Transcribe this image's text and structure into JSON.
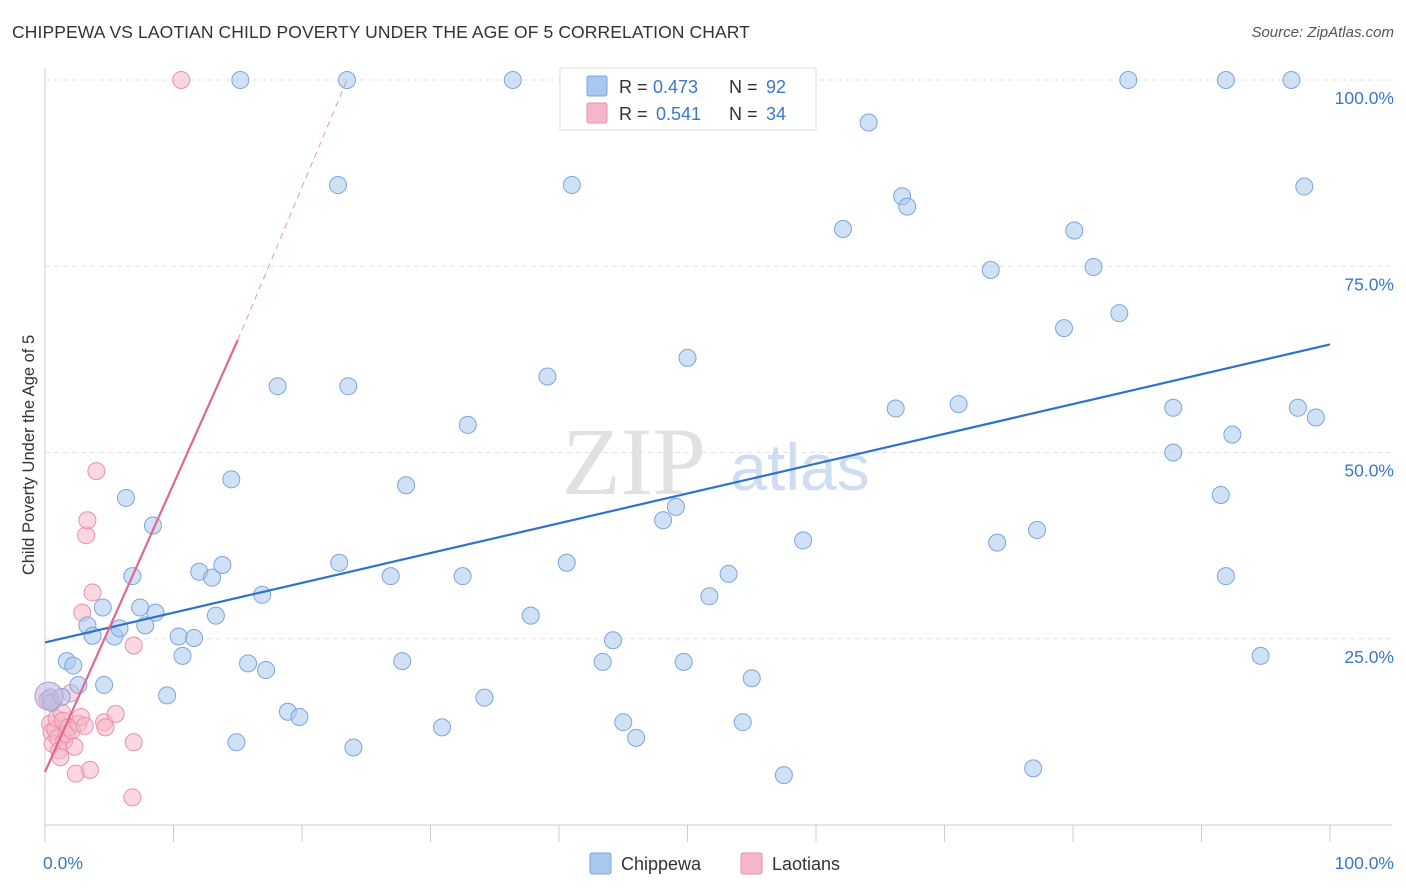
{
  "title": "CHIPPEWA VS LAOTIAN CHILD POVERTY UNDER THE AGE OF 5 CORRELATION CHART",
  "source": "Source: ZipAtlas.com",
  "watermark": {
    "zip": "ZIP",
    "atlas": "atlas"
  },
  "legend_box": {
    "rows": [
      {
        "r_label": "R =",
        "r_value": "0.473",
        "n_label": "N =",
        "n_value": "92"
      },
      {
        "r_label": "R =",
        "r_value": "0.541",
        "n_label": "N =",
        "n_value": "34"
      }
    ]
  },
  "colors": {
    "chippewa_fill": "#a9c8ef",
    "chippewa_stroke": "#7aa6de",
    "chippewa_line": "#2f73c8",
    "laotians_fill": "#f5b6c9",
    "laotians_stroke": "#ec8fac",
    "laotians_line": "#e2668e",
    "value_text": "#3a78c9",
    "grid": "#e3e3e3"
  },
  "chart_data": {
    "type": "scatter",
    "title": "CHIPPEWA VS LAOTIAN CHILD POVERTY UNDER THE AGE OF 5 CORRELATION CHART",
    "xlabel": "",
    "ylabel": "Child Poverty Under the Age of 5",
    "xlim": [
      0,
      100
    ],
    "ylim": [
      0,
      100
    ],
    "x_tick_labels": [
      "0.0%",
      "100.0%"
    ],
    "y_tick_labels": [
      "25.0%",
      "50.0%",
      "75.0%",
      "100.0%"
    ],
    "y_tick_values": [
      25,
      50,
      75,
      100
    ],
    "grid": "horizontal dashed",
    "legend_position": "bottom-center",
    "series": [
      {
        "name": "Chippewa",
        "r": 0.473,
        "n": 92,
        "trend": {
          "x": [
            0,
            100
          ],
          "y": [
            24.5,
            64.5
          ]
        },
        "points": [
          [
            0.4,
            17.1
          ],
          [
            0.5,
            16.4
          ],
          [
            1.3,
            17.2
          ],
          [
            1.7,
            22.0
          ],
          [
            2.2,
            21.4
          ],
          [
            2.6,
            18.8
          ],
          [
            3.3,
            26.8
          ],
          [
            3.7,
            25.4
          ],
          [
            4.5,
            29.2
          ],
          [
            4.6,
            18.8
          ],
          [
            5.4,
            25.3
          ],
          [
            5.8,
            26.4
          ],
          [
            6.3,
            43.9
          ],
          [
            6.8,
            33.4
          ],
          [
            7.4,
            29.2
          ],
          [
            7.8,
            26.8
          ],
          [
            8.4,
            40.2
          ],
          [
            8.6,
            28.5
          ],
          [
            9.5,
            17.4
          ],
          [
            10.4,
            25.3
          ],
          [
            10.7,
            22.7
          ],
          [
            11.6,
            25.1
          ],
          [
            12.0,
            34.0
          ],
          [
            13.0,
            33.2
          ],
          [
            13.3,
            28.1
          ],
          [
            13.8,
            34.9
          ],
          [
            14.5,
            46.4
          ],
          [
            14.9,
            11.1
          ],
          [
            15.2,
            100
          ],
          [
            15.8,
            21.7
          ],
          [
            16.9,
            30.9
          ],
          [
            17.2,
            20.8
          ],
          [
            18.1,
            58.9
          ],
          [
            18.9,
            15.2
          ],
          [
            19.8,
            14.5
          ],
          [
            22.8,
            85.9
          ],
          [
            22.9,
            35.2
          ],
          [
            23.5,
            100
          ],
          [
            23.6,
            58.9
          ],
          [
            24.0,
            10.4
          ],
          [
            26.9,
            33.4
          ],
          [
            27.8,
            22.0
          ],
          [
            28.1,
            45.6
          ],
          [
            30.9,
            13.1
          ],
          [
            32.5,
            33.4
          ],
          [
            32.9,
            53.7
          ],
          [
            34.2,
            17.1
          ],
          [
            37.8,
            28.1
          ],
          [
            36.4,
            100
          ],
          [
            39.1,
            60.2
          ],
          [
            40.6,
            35.2
          ],
          [
            41.0,
            85.9
          ],
          [
            43.4,
            21.9
          ],
          [
            44.2,
            24.8
          ],
          [
            45.0,
            13.8
          ],
          [
            46.0,
            11.7
          ],
          [
            48.1,
            40.9
          ],
          [
            49.1,
            42.7
          ],
          [
            49.7,
            21.9
          ],
          [
            50.0,
            62.7
          ],
          [
            51.7,
            30.7
          ],
          [
            53.2,
            33.7
          ],
          [
            54.3,
            13.8
          ],
          [
            55.0,
            19.7
          ],
          [
            57.5,
            6.7
          ],
          [
            59.0,
            38.2
          ],
          [
            62.1,
            80.0
          ],
          [
            64.1,
            94.3
          ],
          [
            66.2,
            55.9
          ],
          [
            66.7,
            84.4
          ],
          [
            67.1,
            83.0
          ],
          [
            71.1,
            56.5
          ],
          [
            73.6,
            74.5
          ],
          [
            74.1,
            37.9
          ],
          [
            76.9,
            7.6
          ],
          [
            77.2,
            39.6
          ],
          [
            79.3,
            66.7
          ],
          [
            80.1,
            79.8
          ],
          [
            81.6,
            74.9
          ],
          [
            83.6,
            68.7
          ],
          [
            84.3,
            100
          ],
          [
            87.8,
            50.0
          ],
          [
            87.8,
            56.0
          ],
          [
            91.5,
            44.3
          ],
          [
            91.9,
            100
          ],
          [
            91.9,
            33.4
          ],
          [
            92.4,
            52.4
          ],
          [
            94.6,
            22.7
          ],
          [
            97.0,
            100
          ],
          [
            97.5,
            56.0
          ],
          [
            98.0,
            85.7
          ],
          [
            98.9,
            54.7
          ]
        ]
      },
      {
        "name": "Laotians",
        "r": 0.541,
        "n": 34,
        "trend": {
          "x": [
            0,
            15
          ],
          "y": [
            7.1,
            65.1
          ],
          "dashed_extension": {
            "x": [
              15,
              23.5
            ],
            "y": [
              65.1,
              100
            ]
          }
        },
        "points": [
          [
            0.2,
            16.8
          ],
          [
            0.4,
            13.6
          ],
          [
            0.5,
            12.5
          ],
          [
            0.6,
            10.9
          ],
          [
            0.8,
            12.8
          ],
          [
            0.9,
            14.3
          ],
          [
            1.0,
            11.7
          ],
          [
            1.1,
            10.0
          ],
          [
            1.2,
            9.1
          ],
          [
            1.3,
            15.1
          ],
          [
            1.4,
            14.0
          ],
          [
            1.5,
            11.3
          ],
          [
            1.7,
            12.2
          ],
          [
            1.8,
            13.1
          ],
          [
            2.0,
            17.7
          ],
          [
            2.1,
            12.7
          ],
          [
            2.3,
            10.5
          ],
          [
            2.4,
            6.9
          ],
          [
            2.6,
            13.6
          ],
          [
            2.8,
            14.5
          ],
          [
            2.9,
            28.5
          ],
          [
            3.1,
            13.3
          ],
          [
            3.2,
            38.9
          ],
          [
            3.3,
            40.9
          ],
          [
            3.5,
            7.4
          ],
          [
            3.7,
            31.2
          ],
          [
            4.0,
            47.5
          ],
          [
            4.6,
            13.8
          ],
          [
            4.7,
            13.1
          ],
          [
            5.5,
            14.9
          ],
          [
            6.9,
            24.1
          ],
          [
            6.9,
            11.1
          ],
          [
            6.8,
            3.7
          ],
          [
            10.6,
            100
          ]
        ]
      }
    ]
  },
  "legend": [
    {
      "label": "Chippewa"
    },
    {
      "label": "Laotians"
    }
  ]
}
